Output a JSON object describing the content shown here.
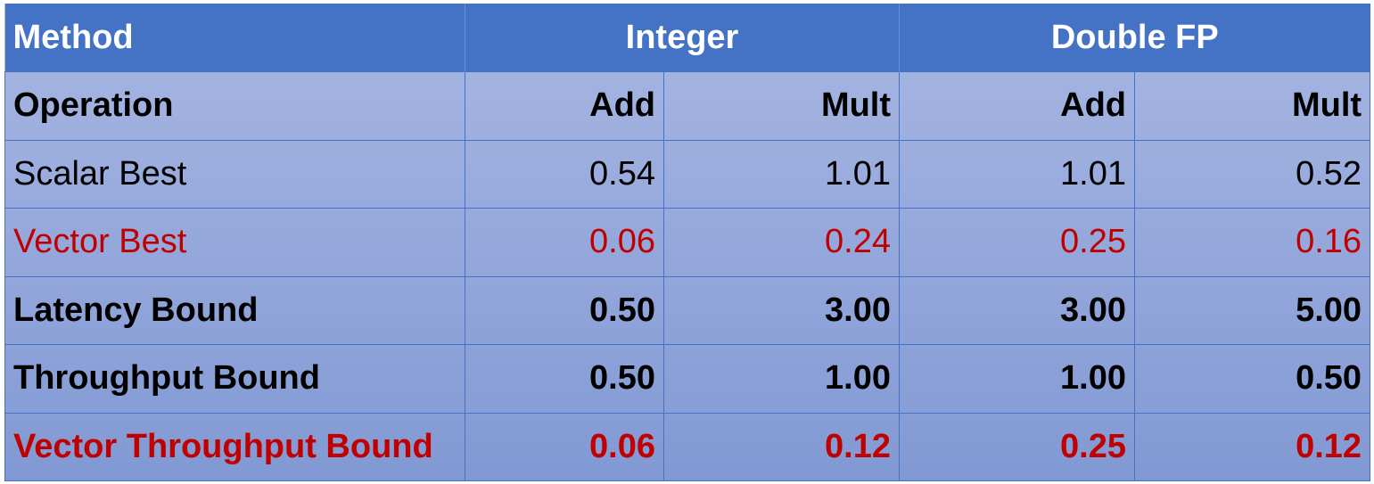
{
  "table": {
    "header": {
      "method": "Method",
      "integer": "Integer",
      "double_fp": "Double FP"
    },
    "subheader": {
      "operation": "Operation",
      "int_add": "Add",
      "int_mult": "Mult",
      "fp_add": "Add",
      "fp_mult": "Mult"
    },
    "rows": [
      {
        "label": "Scalar Best",
        "int_add": "0.54",
        "int_mult": "1.01",
        "fp_add": "1.01",
        "fp_mult": "0.52"
      },
      {
        "label": "Vector Best",
        "int_add": "0.06",
        "int_mult": "0.24",
        "fp_add": "0.25",
        "fp_mult": "0.16"
      },
      {
        "label": "Latency Bound",
        "int_add": "0.50",
        "int_mult": "3.00",
        "fp_add": "3.00",
        "fp_mult": "5.00"
      },
      {
        "label": "Throughput Bound",
        "int_add": "0.50",
        "int_mult": "1.00",
        "fp_add": "1.00",
        "fp_mult": "0.50"
      },
      {
        "label": "Vector Throughput Bound",
        "int_add": "0.06",
        "int_mult": "0.12",
        "fp_add": "0.25",
        "fp_mult": "0.12"
      }
    ]
  },
  "colors": {
    "header_bg": "#4472c4",
    "header_text": "#ffffff",
    "body_text": "#000000",
    "highlight_text": "#c00000",
    "body_bg_top": "#a9b8e2",
    "body_bg_bottom": "#8199d3"
  }
}
